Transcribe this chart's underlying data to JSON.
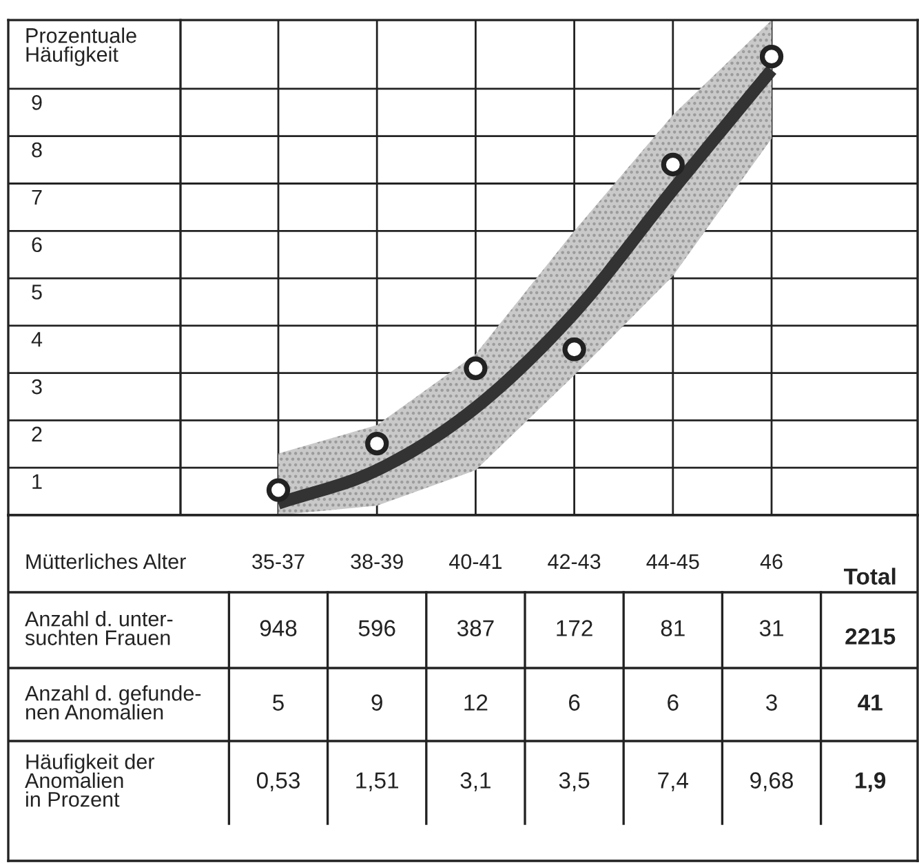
{
  "chart_data": [
    {
      "type": "scatter",
      "ylabel": "Prozentuale\nHäufigkeit",
      "categories": [
        null,
        null,
        null,
        null,
        null,
        null
      ],
      "ylim": [
        0,
        10.45
      ],
      "yticks": [
        1,
        2,
        3,
        4,
        5,
        6,
        7,
        8,
        9
      ],
      "grid": true,
      "series": [
        {
          "type": "line",
          "color": "#333333",
          "values": [
            0.25,
            0.95,
            2.27,
            4.27,
            6.87,
            9.4
          ],
          "lower": [
            0.0,
            0.2,
            0.95,
            2.95,
            5.05,
            7.95
          ],
          "upper": [
            1.3,
            1.9,
            3.4,
            6.0,
            8.45,
            10.45
          ]
        },
        {
          "type": "scatter",
          "color": "#ffffff",
          "marker": "circle",
          "values": [
            0.53,
            1.51,
            3.1,
            3.5,
            7.4,
            9.68
          ]
        }
      ]
    },
    {
      "type": "other",
      "xlabel": "Mütterliches Alter",
      "categories": [
        "35-37",
        "38-39",
        "40-41",
        "42-43",
        "44-45",
        "46",
        "Total"
      ],
      "series": [
        {
          "name": "Anzahl d. unter-\nsuchten Frauen",
          "values": [
            948,
            596,
            387,
            172,
            81,
            31,
            2215
          ],
          "value_labels": [
            "948",
            "596",
            "387",
            "172",
            "81",
            "31",
            "2215"
          ]
        },
        {
          "name": "Anzahl d. gefunde-\nnen Anomalien",
          "values": [
            5,
            9,
            12,
            6,
            6,
            3,
            41
          ],
          "value_labels": [
            "5",
            "9",
            "12",
            "6",
            "6",
            "3",
            "41"
          ]
        },
        {
          "name": "Häufigkeit der\nAnomalien\nin Prozent",
          "values": [
            0.53,
            1.51,
            3.1,
            3.5,
            7.4,
            9.68,
            1.9
          ],
          "value_labels": [
            "0,53",
            "1,51",
            "3,1",
            "3,5",
            "7,4",
            "9,68",
            "1,9"
          ]
        }
      ]
    }
  ]
}
